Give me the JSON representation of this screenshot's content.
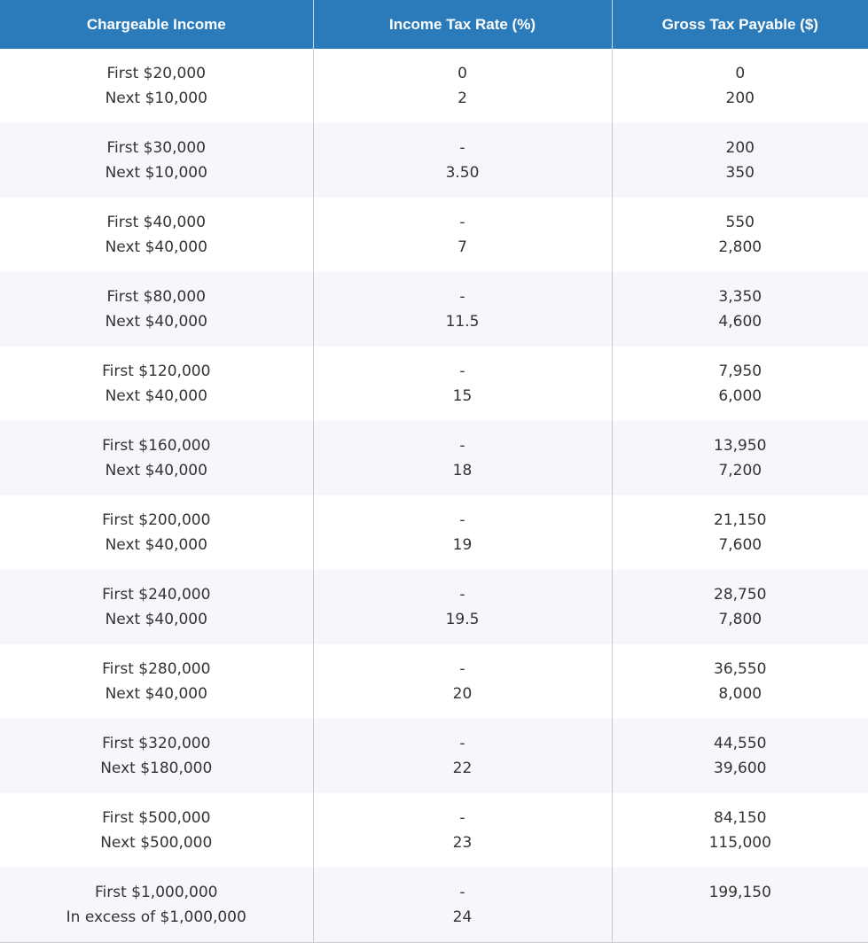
{
  "table": {
    "headers": [
      "Chargeable Income",
      "Income Tax Rate (%)",
      "Gross Tax Payable ($)"
    ],
    "rows": [
      {
        "income": [
          "First $20,000",
          "Next $10,000"
        ],
        "rate": [
          "0",
          "2"
        ],
        "tax": [
          "0",
          "200"
        ]
      },
      {
        "income": [
          "First $30,000",
          "Next $10,000"
        ],
        "rate": [
          "-",
          "3.50"
        ],
        "tax": [
          "200",
          "350"
        ]
      },
      {
        "income": [
          "First $40,000",
          "Next $40,000"
        ],
        "rate": [
          "-",
          "7"
        ],
        "tax": [
          "550",
          "2,800"
        ]
      },
      {
        "income": [
          "First $80,000",
          "Next $40,000"
        ],
        "rate": [
          "-",
          "11.5"
        ],
        "tax": [
          "3,350",
          "4,600"
        ]
      },
      {
        "income": [
          "First $120,000",
          "Next $40,000"
        ],
        "rate": [
          "-",
          "15"
        ],
        "tax": [
          "7,950",
          "6,000"
        ]
      },
      {
        "income": [
          "First $160,000",
          "Next $40,000"
        ],
        "rate": [
          "-",
          "18"
        ],
        "tax": [
          "13,950",
          "7,200"
        ]
      },
      {
        "income": [
          "First $200,000",
          "Next $40,000"
        ],
        "rate": [
          "-",
          "19"
        ],
        "tax": [
          "21,150",
          "7,600"
        ]
      },
      {
        "income": [
          "First $240,000",
          "Next $40,000"
        ],
        "rate": [
          "-",
          "19.5"
        ],
        "tax": [
          "28,750",
          "7,800"
        ]
      },
      {
        "income": [
          "First $280,000",
          "Next $40,000"
        ],
        "rate": [
          "-",
          "20"
        ],
        "tax": [
          "36,550",
          "8,000"
        ]
      },
      {
        "income": [
          "First $320,000",
          "Next $180,000"
        ],
        "rate": [
          "-",
          "22"
        ],
        "tax": [
          "44,550",
          "39,600"
        ]
      },
      {
        "income": [
          "First $500,000",
          "Next $500,000"
        ],
        "rate": [
          "-",
          "23"
        ],
        "tax": [
          "84,150",
          "115,000"
        ]
      },
      {
        "income": [
          "First $1,000,000",
          "In excess of $1,000,000"
        ],
        "rate": [
          "-",
          "24"
        ],
        "tax": [
          "199,150",
          ""
        ]
      }
    ]
  },
  "colors": {
    "header_bg": "#2b7bbb",
    "header_text": "#ffffff",
    "row_alt_bg": "#f5f7fa",
    "row_bg": "#ffffff",
    "text": "#333333"
  }
}
